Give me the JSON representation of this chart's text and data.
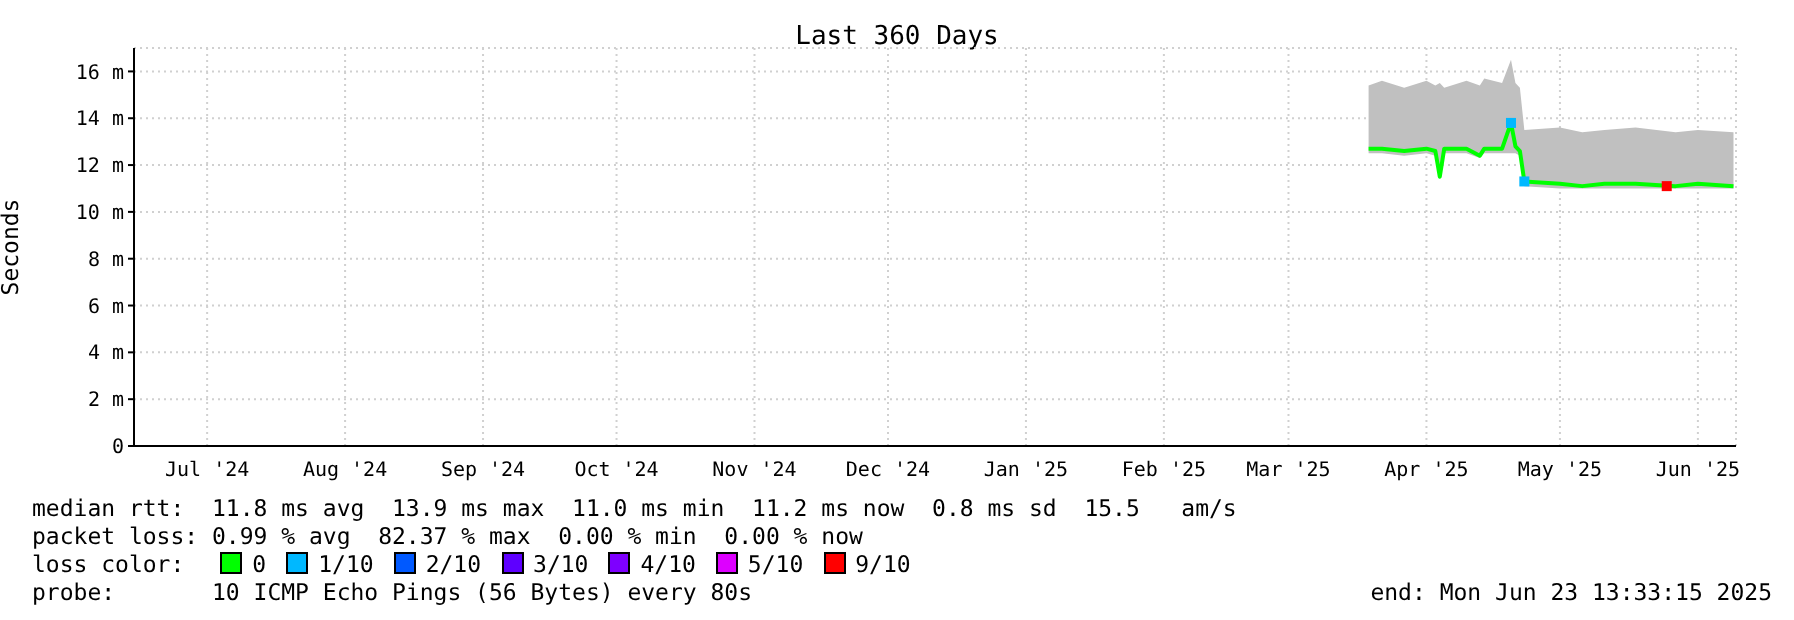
{
  "chart_data": {
    "type": "line",
    "title": "Last 360 Days",
    "ylabel": "Seconds",
    "xlim": [
      "2024-06-28T13:33",
      "2025-06-23T13:33"
    ],
    "xticks": [
      {
        "value": "2024-07-15",
        "label": "Jul '24"
      },
      {
        "value": "2024-08-15",
        "label": "Aug '24"
      },
      {
        "value": "2024-09-15",
        "label": "Sep '24"
      },
      {
        "value": "2024-10-15",
        "label": "Oct '24"
      },
      {
        "value": "2024-11-15",
        "label": "Nov '24"
      },
      {
        "value": "2024-12-15",
        "label": "Dec '24"
      },
      {
        "value": "2025-01-15",
        "label": "Jan '25"
      },
      {
        "value": "2025-02-15",
        "label": "Feb '25"
      },
      {
        "value": "2025-03-15",
        "label": "Mar '25"
      },
      {
        "value": "2025-04-15",
        "label": "Apr '25"
      },
      {
        "value": "2025-05-15",
        "label": "May '25"
      },
      {
        "value": "2025-06-15",
        "label": "Jun '25"
      }
    ],
    "ylim": [
      0,
      17
    ],
    "yticks": [
      0,
      {
        "value": 2,
        "label": "2 m"
      },
      {
        "value": 4,
        "label": "4 m"
      },
      {
        "value": 6,
        "label": "6 m"
      },
      {
        "value": 8,
        "label": "8 m"
      },
      {
        "value": 10,
        "label": "10 m"
      },
      {
        "value": 12,
        "label": "12 m"
      },
      {
        "value": 14,
        "label": "14 m"
      },
      {
        "value": 16,
        "label": "16 m"
      }
    ],
    "grid": true,
    "legend": "bottom",
    "legend_title": "loss color:",
    "series": [
      {
        "name": "0",
        "color": "#00ff00",
        "x": [
          "2025-04-02",
          "2025-04-05",
          "2025-04-10",
          "2025-04-15",
          "2025-04-17",
          "2025-04-18",
          "2025-04-19",
          "2025-04-24",
          "2025-04-27",
          "2025-04-28",
          "2025-05-02",
          "2025-05-04",
          "2025-05-05",
          "2025-05-06",
          "2025-05-07",
          "2025-05-15",
          "2025-05-20",
          "2025-05-25",
          "2025-06-01",
          "2025-06-10",
          "2025-06-15",
          "2025-06-23"
        ],
        "values": [
          12.7,
          12.7,
          12.6,
          12.7,
          12.6,
          11.5,
          12.7,
          12.7,
          12.4,
          12.7,
          12.7,
          13.8,
          12.8,
          12.6,
          11.3,
          11.2,
          11.1,
          11.2,
          11.2,
          11.1,
          11.2,
          11.1
        ],
        "lower": [
          12.5,
          12.5,
          12.4,
          12.5,
          12.4,
          11.4,
          12.5,
          12.5,
          12.3,
          12.5,
          12.5,
          12.5,
          12.5,
          12.4,
          11.1,
          11.0,
          11.0,
          11.0,
          11.0,
          11.0,
          11.0,
          11.0
        ],
        "upper": [
          15.4,
          15.6,
          15.3,
          15.6,
          15.4,
          15.5,
          15.3,
          15.6,
          15.4,
          15.7,
          15.5,
          16.5,
          15.5,
          15.3,
          13.5,
          13.6,
          13.4,
          13.5,
          13.6,
          13.4,
          13.5,
          13.4
        ]
      },
      {
        "name": "1/10",
        "type": "scatter",
        "color": "#00b8ff",
        "marker": "square",
        "x": [
          "2025-05-04",
          "2025-05-07"
        ],
        "values": [
          13.8,
          11.3
        ]
      },
      {
        "name": "2/10",
        "type": "scatter",
        "color": "#0059ff"
      },
      {
        "name": "3/10",
        "type": "scatter",
        "color": "#5e00ff"
      },
      {
        "name": "4/10",
        "type": "scatter",
        "color": "#7e00ff"
      },
      {
        "name": "5/10",
        "type": "scatter",
        "color": "#dd00ff"
      },
      {
        "name": "9/10",
        "type": "scatter",
        "color": "#ff0000",
        "marker": "square",
        "x": [
          "2025-06-08"
        ],
        "values": [
          11.1
        ]
      }
    ],
    "annotations": [
      "median rtt:  11.8 ms avg  13.9 ms max  11.0 ms min  11.2 ms now  0.8 ms sd  15.5   am/s",
      "packet loss: 0.99 % avg  82.37 % max  0.00 % min  0.00 % now",
      "probe:       10 ICMP Echo Pings (56 Bytes) every 80s",
      "end: Mon Jun 23 13:33:15 2025"
    ]
  }
}
